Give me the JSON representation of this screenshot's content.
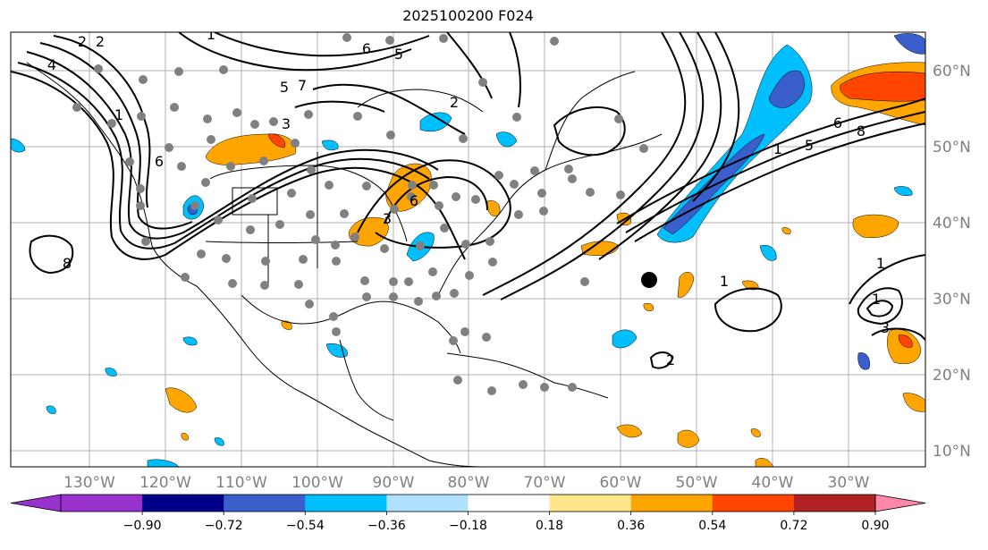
{
  "title": "2025100200 F024",
  "lon_labels": [
    "130°W",
    "120°W",
    "110°W",
    "100°W",
    "90°W",
    "80°W",
    "70°W",
    "60°W",
    "50°W",
    "40°W",
    "30°W"
  ],
  "lat_labels": [
    "60°N",
    "50°N",
    "40°N",
    "30°N",
    "20°N",
    "10°N"
  ],
  "contour_labels": [
    "2",
    "2",
    "4",
    "1",
    "5",
    "6",
    "3",
    "6",
    "5",
    "7",
    "2",
    "1",
    "3",
    "6",
    "5",
    "8",
    "1",
    "6",
    "8",
    "1",
    "1",
    "3",
    "2",
    "1"
  ],
  "colorbar": {
    "ticks": [
      "−0.90",
      "−0.72",
      "−0.54",
      "−0.36",
      "−0.18",
      "0.18",
      "0.36",
      "0.54",
      "0.72",
      "0.90"
    ],
    "colors": [
      "#9932cc",
      "#00008b",
      "#3a5fcd",
      "#00bfff",
      "#b0e2ff",
      "#ffffff",
      "#ffe68a",
      "#ffa500",
      "#ff4500",
      "#b22222"
    ],
    "under_color": "#9932cc",
    "over_color": "#ff88aa"
  }
}
